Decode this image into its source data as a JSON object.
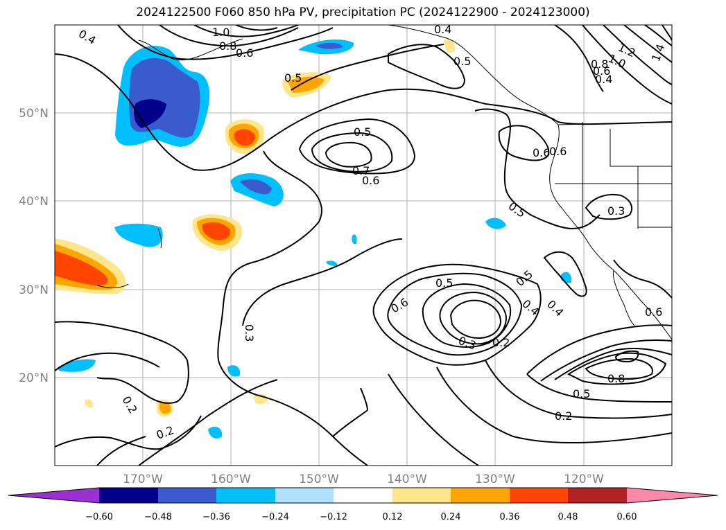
{
  "title": "2024122500 F060 850 hPa PV, precipitation PC (2024122900 - 2024123000)",
  "map": {
    "lat_labels": [
      "50°N",
      "40°N",
      "30°N",
      "20°N"
    ],
    "lon_labels": [
      "170°W",
      "160°W",
      "150°W",
      "140°W",
      "130°W",
      "120°W"
    ],
    "contour_labels": [
      "0.4",
      "1.0",
      "0.8",
      "0.6",
      "0.5",
      "0.4",
      "0.5",
      "1.2",
      "1.0",
      "1.4",
      "0.8",
      "0.6",
      "0.4",
      "0.5",
      "0.7",
      "0.6",
      "0.6",
      "0.6",
      "0.5",
      "0.3",
      "0.5",
      "0.5",
      "0.6",
      "0.4",
      "0.4",
      "0.3",
      "0.2",
      "0.3",
      "0.6",
      "0.8",
      "0.5",
      "0.2",
      "0.2",
      "0.2"
    ]
  },
  "colorbar": {
    "ticks": [
      "−0.60",
      "−0.48",
      "−0.36",
      "−0.24",
      "−0.12",
      "0.12",
      "0.24",
      "0.36",
      "0.48",
      "0.60"
    ],
    "colors": [
      "#9b30d0",
      "#00008b",
      "#3a5bcf",
      "#00bfff",
      "#b0e2ff",
      "#ffffff",
      "#ffe68a",
      "#ffa500",
      "#ff4500",
      "#b22222",
      "#ff88aa"
    ]
  }
}
